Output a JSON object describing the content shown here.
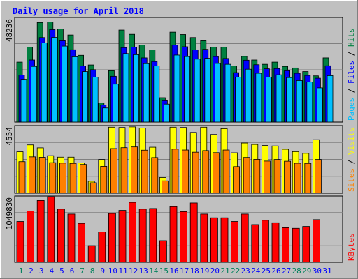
{
  "chart_data": [
    {
      "type": "bar",
      "title": "Daily usage for April 2018",
      "categories": [
        "1",
        "2",
        "3",
        "4",
        "5",
        "6",
        "7",
        "8",
        "9",
        "10",
        "11",
        "12",
        "13",
        "14",
        "15",
        "16",
        "17",
        "18",
        "19",
        "20",
        "21",
        "22",
        "23",
        "24",
        "25",
        "26",
        "27",
        "28",
        "29",
        "30",
        "31"
      ],
      "weekend_days": [
        "1",
        "7",
        "8",
        "14",
        "15",
        "21",
        "22",
        "28",
        "29"
      ],
      "y_max_label": "48236",
      "right_labels": [
        "Pages",
        "Files",
        "Hits"
      ],
      "series": [
        {
          "name": "Hits",
          "color": "#008040",
          "values": [
            28000,
            35000,
            46500,
            46800,
            43500,
            40700,
            31200,
            26700,
            9000,
            24000,
            43000,
            41000,
            36000,
            33700,
            11400,
            42000,
            40900,
            39500,
            38000,
            35000,
            35000,
            26200,
            30700,
            29000,
            27000,
            28000,
            26000,
            25300,
            23600,
            21600,
            30000
          ]
        },
        {
          "name": "Files",
          "color": "#0000ff",
          "values": [
            22000,
            29000,
            39500,
            43200,
            38000,
            33800,
            26200,
            24500,
            8000,
            21400,
            34800,
            35000,
            30000,
            28300,
            10000,
            36000,
            35200,
            33700,
            34000,
            30600,
            29700,
            23100,
            28900,
            26800,
            24900,
            25000,
            24000,
            22800,
            21800,
            20500,
            26300
          ]
        },
        {
          "name": "Pages",
          "color": "#00c0ff",
          "values": [
            20000,
            26000,
            37000,
            39600,
            35500,
            30500,
            23600,
            21000,
            6600,
            17700,
            32000,
            31500,
            27300,
            26200,
            8400,
            31300,
            30600,
            29400,
            29800,
            27400,
            27000,
            21000,
            24700,
            22800,
            21000,
            22100,
            20800,
            19400,
            18700,
            16000,
            21700
          ]
        }
      ],
      "series_2": {
        "y_max_label": "4554",
        "right_labels": [
          "Sites",
          "Visits"
        ],
        "series": [
          {
            "name": "Visits",
            "color": "#ffff00",
            "values": [
              2850,
              3320,
              3120,
              2580,
              2480,
              2480,
              2080,
              820,
              2320,
              4540,
              4520,
              4560,
              4480,
              3160,
              1080,
              4540,
              4520,
              4180,
              4540,
              4040,
              4440,
              2780,
              3450,
              3350,
              3280,
              3250,
              3020,
              2860,
              2740,
              3680,
              0
            ]
          },
          {
            "name": "Sites",
            "color": "#ff8000",
            "values": [
              2170,
              2500,
              2470,
              2100,
              2070,
              2050,
              1980,
              720,
              1850,
              3070,
              3130,
              3180,
              2960,
              2450,
              850,
              3030,
              2970,
              2820,
              2930,
              2790,
              2970,
              1830,
              2460,
              2330,
              2210,
              2320,
              2200,
              2060,
              2050,
              2320,
              0
            ]
          }
        ]
      },
      "series_3": {
        "y_max_label": "1049830",
        "right_labels": [
          "KBytes"
        ],
        "series": [
          {
            "name": "KBytes",
            "color": "#ff0000",
            "values": [
              660000,
              830000,
              1000000,
              1060000,
              860000,
              780000,
              630000,
              270000,
              490000,
              790000,
              840000,
              970000,
              860000,
              870000,
              350000,
              900000,
              820000,
              960000,
              780000,
              720000,
              720000,
              660000,
              780000,
              610000,
              680000,
              640000,
              560000,
              550000,
              580000,
              690000,
              0
            ]
          }
        ]
      }
    }
  ],
  "colors": {
    "background": "#c0c0c0",
    "plot_background": "#c0c0c0",
    "title": "#0000ff",
    "weekday_label": "#0000ff",
    "weekend_label": "#00805c",
    "grid": "#808080",
    "axis_label": "#000000"
  }
}
